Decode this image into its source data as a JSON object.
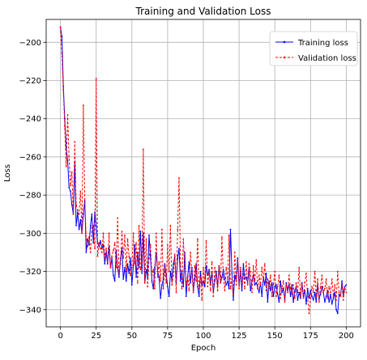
{
  "chart_data": {
    "type": "line",
    "title": "Training and Validation Loss",
    "xlabel": "Epoch",
    "ylabel": "Loss",
    "xlim": [
      -10,
      210
    ],
    "ylim": [
      -349,
      -188
    ],
    "xticks": [
      0,
      25,
      50,
      75,
      100,
      125,
      150,
      175,
      200
    ],
    "yticks": [
      -200,
      -220,
      -240,
      -260,
      -280,
      -300,
      -320,
      -340
    ],
    "grid": true,
    "legend_position": "top-right",
    "series": [
      {
        "name": "Training loss",
        "color": "#0000ff",
        "style": "solid-with-dot-markers",
        "x": [
          0,
          1,
          2,
          3,
          4,
          5,
          6,
          7,
          8,
          9,
          10,
          11,
          12,
          13,
          14,
          15,
          16,
          17,
          18,
          19,
          20,
          21,
          22,
          23,
          24,
          25,
          26,
          27,
          28,
          29,
          30,
          31,
          32,
          33,
          34,
          35,
          36,
          37,
          38,
          39,
          40,
          41,
          42,
          43,
          44,
          45,
          46,
          47,
          48,
          49,
          50,
          51,
          52,
          53,
          54,
          55,
          56,
          57,
          58,
          59,
          60,
          61,
          62,
          63,
          64,
          65,
          66,
          67,
          68,
          69,
          70,
          71,
          72,
          73,
          74,
          75,
          76,
          77,
          78,
          79,
          80,
          81,
          82,
          83,
          84,
          85,
          86,
          87,
          88,
          89,
          90,
          91,
          92,
          93,
          94,
          95,
          96,
          97,
          98,
          99,
          100,
          101,
          102,
          103,
          104,
          105,
          106,
          107,
          108,
          109,
          110,
          111,
          112,
          113,
          114,
          115,
          116,
          117,
          118,
          119,
          120,
          121,
          122,
          123,
          124,
          125,
          126,
          127,
          128,
          129,
          130,
          131,
          132,
          133,
          134,
          135,
          136,
          137,
          138,
          139,
          140,
          141,
          142,
          143,
          144,
          145,
          146,
          147,
          148,
          149,
          150,
          151,
          152,
          153,
          154,
          155,
          156,
          157,
          158,
          159,
          160,
          161,
          162,
          163,
          164,
          165,
          166,
          167,
          168,
          169,
          170,
          171,
          172,
          173,
          174,
          175,
          176,
          177,
          178,
          179,
          180,
          181,
          182,
          183,
          184,
          185,
          186,
          187,
          188,
          189,
          190,
          191,
          192,
          193,
          194,
          195,
          196,
          197,
          198,
          199,
          200
        ],
        "values": [
          -192,
          -197,
          -223,
          -240,
          -255,
          -262,
          -276,
          -278,
          -285,
          -290,
          -263,
          -296,
          -289,
          -298,
          -293,
          -300,
          -290,
          -283,
          -310,
          -303,
          -306,
          -296,
          -290,
          -305,
          -289,
          -296,
          -305,
          -307,
          -304,
          -308,
          -306,
          -316,
          -310,
          -316,
          -307,
          -318,
          -313,
          -322,
          -325,
          -309,
          -318,
          -323,
          -313,
          -308,
          -324,
          -318,
          -325,
          -316,
          -321,
          -313,
          -327,
          -317,
          -306,
          -323,
          -310,
          -318,
          -299,
          -321,
          -300,
          -326,
          -319,
          -323,
          -301,
          -312,
          -325,
          -329,
          -318,
          -310,
          -320,
          -323,
          -334,
          -327,
          -324,
          -316,
          -322,
          -328,
          -333,
          -320,
          -325,
          -316,
          -312,
          -326,
          -313,
          -308,
          -325,
          -320,
          -328,
          -310,
          -333,
          -323,
          -315,
          -326,
          -318,
          -330,
          -324,
          -316,
          -328,
          -333,
          -320,
          -327,
          -325,
          -328,
          -317,
          -322,
          -319,
          -326,
          -321,
          -331,
          -325,
          -320,
          -328,
          -317,
          -326,
          -323,
          -319,
          -324,
          -327,
          -325,
          -329,
          -298,
          -321,
          -335,
          -322,
          -325,
          -313,
          -327,
          -320,
          -330,
          -316,
          -324,
          -323,
          -326,
          -319,
          -330,
          -325,
          -322,
          -327,
          -326,
          -328,
          -331,
          -326,
          -333,
          -323,
          -327,
          -321,
          -336,
          -325,
          -330,
          -326,
          -333,
          -328,
          -327,
          -332,
          -336,
          -325,
          -331,
          -329,
          -335,
          -326,
          -330,
          -327,
          -333,
          -327,
          -336,
          -330,
          -328,
          -335,
          -331,
          -334,
          -326,
          -333,
          -330,
          -337,
          -329,
          -334,
          -330,
          -333,
          -335,
          -331,
          -336,
          -327,
          -334,
          -332,
          -328,
          -331,
          -336,
          -333,
          -330,
          -336,
          -332,
          -337,
          -334,
          -331,
          -340,
          -342,
          -332,
          -333,
          -325,
          -332,
          -328,
          -327
        ]
      },
      {
        "name": "Validation loss",
        "color": "#ff0000",
        "style": "dashed-with-dot-markers",
        "x": [
          0,
          1,
          2,
          3,
          4,
          5,
          6,
          7,
          8,
          9,
          10,
          11,
          12,
          13,
          14,
          15,
          16,
          17,
          18,
          19,
          20,
          21,
          22,
          23,
          24,
          25,
          26,
          27,
          28,
          29,
          30,
          31,
          32,
          33,
          34,
          35,
          36,
          37,
          38,
          39,
          40,
          41,
          42,
          43,
          44,
          45,
          46,
          47,
          48,
          49,
          50,
          51,
          52,
          53,
          54,
          55,
          56,
          57,
          58,
          59,
          60,
          61,
          62,
          63,
          64,
          65,
          66,
          67,
          68,
          69,
          70,
          71,
          72,
          73,
          74,
          75,
          76,
          77,
          78,
          79,
          80,
          81,
          82,
          83,
          84,
          85,
          86,
          87,
          88,
          89,
          90,
          91,
          92,
          93,
          94,
          95,
          96,
          97,
          98,
          99,
          100,
          101,
          102,
          103,
          104,
          105,
          106,
          107,
          108,
          109,
          110,
          111,
          112,
          113,
          114,
          115,
          116,
          117,
          118,
          119,
          120,
          121,
          122,
          123,
          124,
          125,
          126,
          127,
          128,
          129,
          130,
          131,
          132,
          133,
          134,
          135,
          136,
          137,
          138,
          139,
          140,
          141,
          142,
          143,
          144,
          145,
          146,
          147,
          148,
          149,
          150,
          151,
          152,
          153,
          154,
          155,
          156,
          157,
          158,
          159,
          160,
          161,
          162,
          163,
          164,
          165,
          166,
          167,
          168,
          169,
          170,
          171,
          172,
          173,
          174,
          175,
          176,
          177,
          178,
          179,
          180,
          181,
          182,
          183,
          184,
          185,
          186,
          187,
          188,
          189,
          190,
          191,
          192,
          193,
          194,
          195,
          196,
          197,
          198,
          199,
          200
        ],
        "values": [
          -192,
          -206,
          -225,
          -244,
          -265,
          -238,
          -260,
          -275,
          -268,
          -290,
          -252,
          -285,
          -288,
          -290,
          -278,
          -300,
          -233,
          -282,
          -303,
          -307,
          -302,
          -310,
          -297,
          -296,
          -308,
          -219,
          -312,
          -305,
          -308,
          -310,
          -300,
          -313,
          -308,
          -315,
          -300,
          -318,
          -312,
          -309,
          -305,
          -318,
          -292,
          -321,
          -316,
          -299,
          -313,
          -301,
          -320,
          -303,
          -312,
          -322,
          -318,
          -300,
          -316,
          -305,
          -326,
          -296,
          -319,
          -315,
          -256,
          -326,
          -303,
          -328,
          -313,
          -306,
          -322,
          -319,
          -329,
          -300,
          -323,
          -315,
          -325,
          -298,
          -329,
          -318,
          -326,
          -306,
          -320,
          -296,
          -327,
          -322,
          -311,
          -331,
          -298,
          -271,
          -316,
          -329,
          -303,
          -318,
          -327,
          -322,
          -330,
          -310,
          -321,
          -331,
          -317,
          -325,
          -303,
          -329,
          -323,
          -335,
          -318,
          -326,
          -304,
          -328,
          -320,
          -330,
          -315,
          -333,
          -318,
          -322,
          -330,
          -317,
          -326,
          -302,
          -323,
          -330,
          -318,
          -324,
          -301,
          -329,
          -324,
          -332,
          -310,
          -327,
          -314,
          -329,
          -318,
          -326,
          -321,
          -329,
          -315,
          -327,
          -316,
          -320,
          -331,
          -317,
          -325,
          -314,
          -329,
          -322,
          -327,
          -318,
          -325,
          -316,
          -330,
          -324,
          -329,
          -322,
          -333,
          -327,
          -320,
          -333,
          -328,
          -322,
          -334,
          -329,
          -325,
          -336,
          -327,
          -331,
          -322,
          -329,
          -332,
          -327,
          -334,
          -326,
          -331,
          -318,
          -333,
          -327,
          -334,
          -326,
          -321,
          -333,
          -342,
          -334,
          -328,
          -331,
          -320,
          -333,
          -324,
          -336,
          -328,
          -322,
          -331,
          -329,
          -324,
          -334,
          -328,
          -331,
          -324,
          -333,
          -327,
          -335,
          -320,
          -331,
          -333,
          -327,
          -335,
          -329,
          -331
        ]
      }
    ]
  }
}
